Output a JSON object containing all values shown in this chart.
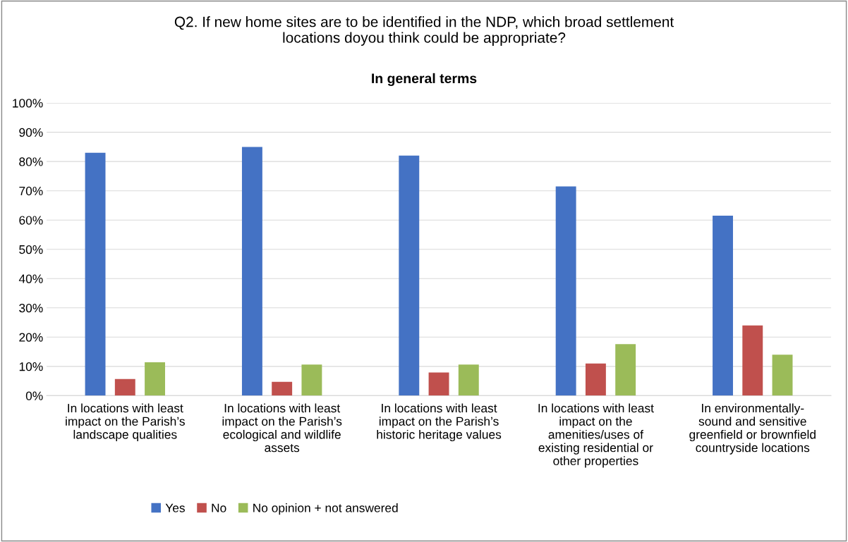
{
  "chart_data": {
    "type": "bar",
    "title": "Q2. If new home sites are to be identified in the NDP, which broad settlement\nlocations doyou think could be appropriate?",
    "subtitle": "In general terms",
    "categories": [
      "In locations with least\nimpact on the Parish’s\nlandscape qualities",
      "In locations with least\nimpact on the Parish’s\necological and wildlife\nassets",
      "In locations with least\nimpact on the Parish’s\nhistoric heritage values",
      "In locations with least\nimpact on the\namenities/uses of\nexisting residential or\nother properties",
      "In environmentally-\nsound and sensitive\ngreenfield or brownfield\ncountryside locations"
    ],
    "series": [
      {
        "name": "Yes",
        "color": "#4472c4",
        "values": [
          83,
          85,
          82,
          71.5,
          61.5
        ]
      },
      {
        "name": "No",
        "color": "#c0504d",
        "values": [
          5.7,
          4.7,
          7.9,
          11,
          24
        ]
      },
      {
        "name": "No opinion + not answered",
        "color": "#9bbb59",
        "values": [
          11.4,
          10.6,
          10.6,
          17.6,
          14
        ]
      }
    ],
    "ylim": [
      0,
      100
    ],
    "yticks": [
      {
        "value": 0,
        "label": "0%"
      },
      {
        "value": 10,
        "label": "10%"
      },
      {
        "value": 20,
        "label": "20%"
      },
      {
        "value": 30,
        "label": "30%"
      },
      {
        "value": 40,
        "label": "40%"
      },
      {
        "value": 50,
        "label": "50%"
      },
      {
        "value": 60,
        "label": "60%"
      },
      {
        "value": 70,
        "label": "70%"
      },
      {
        "value": 80,
        "label": "80%"
      },
      {
        "value": 90,
        "label": "90%"
      },
      {
        "value": 100,
        "label": "100%"
      }
    ],
    "grid": "y",
    "legend": "bottom left"
  }
}
